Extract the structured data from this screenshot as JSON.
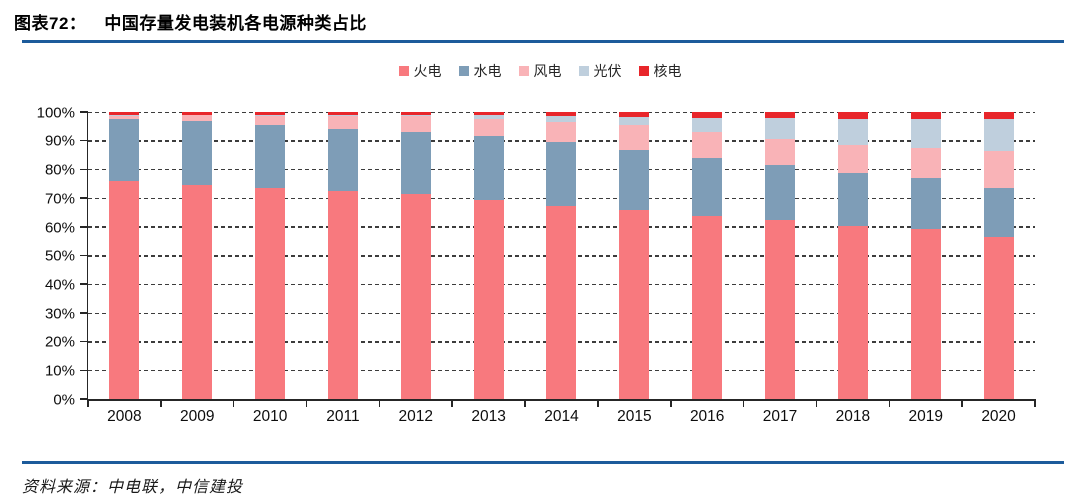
{
  "figure": {
    "label": "图表72：",
    "title": "中国存量发电装机各电源种类占比"
  },
  "source": {
    "text": "资料来源：中电联，中信建投"
  },
  "colors": {
    "rule_blue": "#1c5b9b",
    "axis": "#262626",
    "gridline": "#3c3c3c",
    "background": "#ffffff"
  },
  "chart_data": {
    "type": "bar",
    "stacked": true,
    "unit": "percent",
    "title": "中国存量发电装机各电源种类占比",
    "xlabel": "",
    "ylabel": "",
    "ylim": [
      0,
      100
    ],
    "grid": "horizontal-dashed",
    "legend_position": "top-center",
    "categories": [
      "2008",
      "2009",
      "2010",
      "2011",
      "2012",
      "2013",
      "2014",
      "2015",
      "2016",
      "2017",
      "2018",
      "2019",
      "2020"
    ],
    "y_ticks": [
      "0%",
      "10%",
      "20%",
      "30%",
      "40%",
      "50%",
      "60%",
      "70%",
      "80%",
      "90%",
      "100%"
    ],
    "series": [
      {
        "name": "火电",
        "color": "#F8797E",
        "values": [
          76.0,
          74.6,
          73.4,
          72.3,
          71.5,
          69.2,
          67.4,
          66.0,
          63.9,
          62.2,
          60.2,
          59.2,
          56.6
        ]
      },
      {
        "name": "水电",
        "color": "#7E9DB7",
        "values": [
          21.6,
          22.2,
          22.2,
          21.9,
          21.7,
          22.3,
          22.2,
          20.9,
          20.2,
          19.3,
          18.5,
          17.7,
          16.9
        ]
      },
      {
        "name": "风电",
        "color": "#F9B3B7",
        "values": [
          1.1,
          2.0,
          3.1,
          4.3,
          5.3,
          6.0,
          7.0,
          8.6,
          9.1,
          9.2,
          9.7,
          10.4,
          12.8
        ]
      },
      {
        "name": "光伏",
        "color": "#BFCFDD",
        "values": [
          0.1,
          0.1,
          0.1,
          0.3,
          0.4,
          1.3,
          1.9,
          2.8,
          4.7,
          7.3,
          9.2,
          10.2,
          11.4
        ]
      },
      {
        "name": "核电",
        "color": "#E8262B",
        "values": [
          1.2,
          1.1,
          1.2,
          1.2,
          1.1,
          1.2,
          1.5,
          1.7,
          2.1,
          2.0,
          2.4,
          2.5,
          2.3
        ]
      }
    ]
  }
}
